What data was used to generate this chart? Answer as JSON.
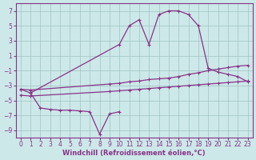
{
  "background_color": "#cce8e8",
  "grid_color": "#a0c4c4",
  "line_color": "#883388",
  "series1": {
    "x": [
      0,
      1,
      10,
      11,
      12,
      13,
      14,
      15,
      16,
      17,
      18,
      19,
      20,
      21,
      22,
      23
    ],
    "y": [
      -3.5,
      -4.0,
      2.5,
      5.0,
      5.8,
      2.5,
      6.5,
      7.0,
      7.0,
      6.5,
      5.0,
      -0.7,
      -1.2,
      -1.5,
      -1.8,
      -2.5
    ]
  },
  "series2": {
    "x": [
      0,
      1,
      9,
      10,
      11,
      12,
      13,
      14,
      15,
      16,
      17,
      18,
      19,
      20,
      21,
      22,
      23
    ],
    "y": [
      -3.5,
      -3.6,
      -2.8,
      -2.7,
      -2.5,
      -2.4,
      -2.2,
      -2.1,
      -2.0,
      -1.8,
      -1.5,
      -1.3,
      -1.0,
      -0.8,
      -0.6,
      -0.4,
      -0.3
    ]
  },
  "series3": {
    "x": [
      0,
      1,
      9,
      10,
      11,
      12,
      13,
      14,
      15,
      16,
      17,
      18,
      19,
      20,
      21,
      22,
      23
    ],
    "y": [
      -4.3,
      -4.4,
      -3.8,
      -3.7,
      -3.6,
      -3.5,
      -3.4,
      -3.3,
      -3.2,
      -3.1,
      -3.0,
      -2.9,
      -2.8,
      -2.7,
      -2.6,
      -2.5,
      -2.4
    ]
  },
  "series4": {
    "x": [
      1,
      2,
      3,
      4,
      5,
      6,
      7,
      8,
      9,
      10
    ],
    "y": [
      -4.0,
      -6.0,
      -6.2,
      -6.3,
      -6.3,
      -6.4,
      -6.5,
      -9.5,
      -6.8,
      -6.5
    ]
  },
  "xlabel": "Windchill (Refroidissement éolien,°C)",
  "ylim": [
    -10,
    8
  ],
  "xlim": [
    -0.5,
    23.5
  ],
  "yticks": [
    7,
    5,
    3,
    1,
    -1,
    -3,
    -5,
    -7,
    -9
  ],
  "xticks": [
    0,
    1,
    2,
    3,
    4,
    5,
    6,
    7,
    8,
    9,
    10,
    11,
    12,
    13,
    14,
    15,
    16,
    17,
    18,
    19,
    20,
    21,
    22,
    23
  ]
}
